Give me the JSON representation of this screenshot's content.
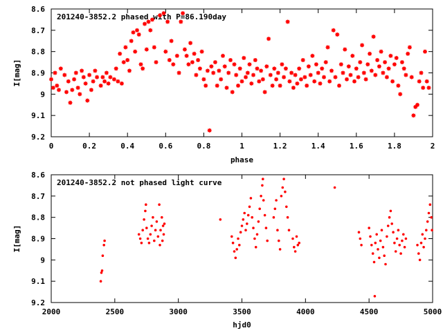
{
  "colors": {
    "points": "#ff0000",
    "axes": "#000000",
    "background": "#ffffff"
  },
  "chart_data": [
    {
      "type": "scatter",
      "title": "201240-3852.2 phased with P=86.190day",
      "xlabel": "phase",
      "ylabel": "I[mag]",
      "xlim": [
        0,
        2
      ],
      "ylim": [
        8.6,
        9.2
      ],
      "y_inverted": true,
      "grid": false,
      "marker": "star",
      "x_ticks": [
        0,
        0.2,
        0.4,
        0.6,
        0.8,
        1,
        1.2,
        1.4,
        1.6,
        1.8,
        2
      ],
      "x_tick_labels": [
        "0",
        "0.2",
        "0.4",
        "0.6",
        "0.8",
        "1",
        "1.2",
        "1.4",
        "1.6",
        "1.8",
        "2"
      ],
      "y_ticks": [
        8.6,
        8.7,
        8.8,
        8.9,
        9,
        9.1,
        9.2
      ],
      "y_tick_labels": [
        "8.6",
        "8.7",
        "8.8",
        "8.9",
        "9",
        "9.1",
        "9.2"
      ],
      "points": [
        [
          0.0,
          8.93
        ],
        [
          0.01,
          8.97
        ],
        [
          0.02,
          8.9
        ],
        [
          0.03,
          8.96
        ],
        [
          0.04,
          8.98
        ],
        [
          0.05,
          8.88
        ],
        [
          0.07,
          8.91
        ],
        [
          0.08,
          8.99
        ],
        [
          0.09,
          8.94
        ],
        [
          0.1,
          9.04
        ],
        [
          0.11,
          8.98
        ],
        [
          0.12,
          8.93
        ],
        [
          0.13,
          8.9
        ],
        [
          0.14,
          8.97
        ],
        [
          0.15,
          9.0
        ],
        [
          0.16,
          8.89
        ],
        [
          0.17,
          8.92
        ],
        [
          0.18,
          8.95
        ],
        [
          0.19,
          9.03
        ],
        [
          0.2,
          8.91
        ],
        [
          0.21,
          8.98
        ],
        [
          0.22,
          8.94
        ],
        [
          0.23,
          8.89
        ],
        [
          0.24,
          8.92
        ],
        [
          0.26,
          8.96
        ],
        [
          0.27,
          8.92
        ],
        [
          0.28,
          8.94
        ],
        [
          0.29,
          8.9
        ],
        [
          0.3,
          8.95
        ],
        [
          0.31,
          8.92
        ],
        [
          0.33,
          8.93
        ],
        [
          0.34,
          8.88
        ],
        [
          0.35,
          8.94
        ],
        [
          0.36,
          8.81
        ],
        [
          0.37,
          8.95
        ],
        [
          0.38,
          8.85
        ],
        [
          0.39,
          8.78
        ],
        [
          0.4,
          8.84
        ],
        [
          0.41,
          8.89
        ],
        [
          0.42,
          8.75
        ],
        [
          0.43,
          8.71
        ],
        [
          0.44,
          8.8
        ],
        [
          0.45,
          8.7
        ],
        [
          0.46,
          8.72
        ],
        [
          0.47,
          8.86
        ],
        [
          0.48,
          8.88
        ],
        [
          0.49,
          8.67
        ],
        [
          0.5,
          8.79
        ],
        [
          0.51,
          8.66
        ],
        [
          0.52,
          8.7
        ],
        [
          0.53,
          8.65
        ],
        [
          0.54,
          8.78
        ],
        [
          0.55,
          8.85
        ],
        [
          0.57,
          8.63
        ],
        [
          0.59,
          8.62
        ],
        [
          0.6,
          8.8
        ],
        [
          0.61,
          8.66
        ],
        [
          0.62,
          8.84
        ],
        [
          0.63,
          8.75
        ],
        [
          0.64,
          8.86
        ],
        [
          0.66,
          8.82
        ],
        [
          0.67,
          8.9
        ],
        [
          0.68,
          8.66
        ],
        [
          0.69,
          8.62
        ],
        [
          0.7,
          8.79
        ],
        [
          0.71,
          8.82
        ],
        [
          0.72,
          8.86
        ],
        [
          0.73,
          8.76
        ],
        [
          0.74,
          8.85
        ],
        [
          0.75,
          8.81
        ],
        [
          0.76,
          8.91
        ],
        [
          0.77,
          8.84
        ],
        [
          0.78,
          8.88
        ],
        [
          0.79,
          8.8
        ],
        [
          0.8,
          8.93
        ],
        [
          0.81,
          8.96
        ],
        [
          0.82,
          8.89
        ],
        [
          0.83,
          9.17
        ],
        [
          0.84,
          8.87
        ],
        [
          0.85,
          8.9
        ],
        [
          0.86,
          8.85
        ],
        [
          0.87,
          8.96
        ],
        [
          0.88,
          8.89
        ],
        [
          0.89,
          8.93
        ],
        [
          0.9,
          8.82
        ],
        [
          0.91,
          8.87
        ],
        [
          0.92,
          8.97
        ],
        [
          0.93,
          8.9
        ],
        [
          0.94,
          8.84
        ],
        [
          0.95,
          8.99
        ],
        [
          0.96,
          8.86
        ],
        [
          0.97,
          8.91
        ],
        [
          0.98,
          8.96
        ],
        [
          0.99,
          8.88
        ],
        [
          1.0,
          8.94
        ],
        [
          1.01,
          8.83
        ],
        [
          1.02,
          8.92
        ],
        [
          1.03,
          8.9
        ],
        [
          1.04,
          8.86
        ],
        [
          1.05,
          8.95
        ],
        [
          1.06,
          8.91
        ],
        [
          1.07,
          8.84
        ],
        [
          1.08,
          8.88
        ],
        [
          1.09,
          8.94
        ],
        [
          1.1,
          8.89
        ],
        [
          1.11,
          8.93
        ],
        [
          1.12,
          8.99
        ],
        [
          1.13,
          8.87
        ],
        [
          1.14,
          8.74
        ],
        [
          1.15,
          8.91
        ],
        [
          1.16,
          8.96
        ],
        [
          1.17,
          8.88
        ],
        [
          1.18,
          8.93
        ],
        [
          1.19,
          8.9
        ],
        [
          1.2,
          8.96
        ],
        [
          1.21,
          8.86
        ],
        [
          1.22,
          8.92
        ],
        [
          1.23,
          8.88
        ],
        [
          1.24,
          8.66
        ],
        [
          1.25,
          8.94
        ],
        [
          1.26,
          8.9
        ],
        [
          1.27,
          8.97
        ],
        [
          1.28,
          8.91
        ],
        [
          1.29,
          8.95
        ],
        [
          1.3,
          8.88
        ],
        [
          1.31,
          8.93
        ],
        [
          1.32,
          8.84
        ],
        [
          1.33,
          8.92
        ],
        [
          1.34,
          8.96
        ],
        [
          1.35,
          8.87
        ],
        [
          1.36,
          8.91
        ],
        [
          1.37,
          8.82
        ],
        [
          1.38,
          8.94
        ],
        [
          1.39,
          8.86
        ],
        [
          1.4,
          8.9
        ],
        [
          1.41,
          8.95
        ],
        [
          1.42,
          8.88
        ],
        [
          1.43,
          8.92
        ],
        [
          1.44,
          8.85
        ],
        [
          1.45,
          8.78
        ],
        [
          1.46,
          8.94
        ],
        [
          1.47,
          8.89
        ],
        [
          1.48,
          8.7
        ],
        [
          1.49,
          8.92
        ],
        [
          1.5,
          8.72
        ],
        [
          1.51,
          8.96
        ],
        [
          1.52,
          8.86
        ],
        [
          1.53,
          8.9
        ],
        [
          1.54,
          8.79
        ],
        [
          1.55,
          8.93
        ],
        [
          1.56,
          8.87
        ],
        [
          1.57,
          8.91
        ],
        [
          1.58,
          8.82
        ],
        [
          1.59,
          8.94
        ],
        [
          1.6,
          8.88
        ],
        [
          1.61,
          8.92
        ],
        [
          1.62,
          8.85
        ],
        [
          1.63,
          8.77
        ],
        [
          1.64,
          8.9
        ],
        [
          1.65,
          8.93
        ],
        [
          1.66,
          8.86
        ],
        [
          1.67,
          8.81
        ],
        [
          1.68,
          8.89
        ],
        [
          1.69,
          8.73
        ],
        [
          1.7,
          8.91
        ],
        [
          1.71,
          8.84
        ],
        [
          1.72,
          8.87
        ],
        [
          1.73,
          8.8
        ],
        [
          1.74,
          8.9
        ],
        [
          1.75,
          8.85
        ],
        [
          1.76,
          8.92
        ],
        [
          1.77,
          8.88
        ],
        [
          1.78,
          8.82
        ],
        [
          1.79,
          8.94
        ],
        [
          1.8,
          8.86
        ],
        [
          1.81,
          8.83
        ],
        [
          1.82,
          8.96
        ],
        [
          1.83,
          9.0
        ],
        [
          1.84,
          8.85
        ],
        [
          1.85,
          8.88
        ],
        [
          1.86,
          8.91
        ],
        [
          1.87,
          8.81
        ],
        [
          1.88,
          8.78
        ],
        [
          1.89,
          8.92
        ],
        [
          1.9,
          9.1
        ],
        [
          1.91,
          9.06
        ],
        [
          1.92,
          9.05
        ],
        [
          1.93,
          8.94
        ],
        [
          1.94,
          8.9
        ],
        [
          1.95,
          8.97
        ],
        [
          1.96,
          8.8
        ],
        [
          1.97,
          8.94
        ],
        [
          1.98,
          8.97
        ]
      ]
    },
    {
      "type": "scatter",
      "title": "201240-3852.2 not phased light curve",
      "xlabel": "hjd0",
      "ylabel": "I[mag]",
      "xlim": [
        2000,
        5000
      ],
      "ylim": [
        8.6,
        9.2
      ],
      "y_inverted": true,
      "grid": false,
      "marker": "dot",
      "x_ticks": [
        2000,
        2500,
        3000,
        3500,
        4000,
        4500,
        5000
      ],
      "x_tick_labels": [
        "2000",
        "2500",
        "3000",
        "3500",
        "4000",
        "4500",
        "5000"
      ],
      "y_ticks": [
        8.6,
        8.7,
        8.8,
        8.9,
        9,
        9.1,
        9.2
      ],
      "y_tick_labels": [
        "8.6",
        "8.7",
        "8.8",
        "8.9",
        "9",
        "9.1",
        "9.2"
      ],
      "points": [
        [
          2390,
          9.1
        ],
        [
          2395,
          9.06
        ],
        [
          2400,
          9.05
        ],
        [
          2405,
          8.98
        ],
        [
          2415,
          8.93
        ],
        [
          2420,
          8.91
        ],
        [
          2690,
          8.88
        ],
        [
          2700,
          8.9
        ],
        [
          2710,
          8.92
        ],
        [
          2720,
          8.86
        ],
        [
          2730,
          8.81
        ],
        [
          2740,
          8.77
        ],
        [
          2745,
          8.74
        ],
        [
          2750,
          8.85
        ],
        [
          2760,
          8.9
        ],
        [
          2770,
          8.92
        ],
        [
          2780,
          8.88
        ],
        [
          2790,
          8.84
        ],
        [
          2800,
          8.8
        ],
        [
          2810,
          8.91
        ],
        [
          2820,
          8.86
        ],
        [
          2830,
          8.82
        ],
        [
          2840,
          8.89
        ],
        [
          2850,
          8.74
        ],
        [
          2855,
          8.93
        ],
        [
          2860,
          8.86
        ],
        [
          2870,
          8.8
        ],
        [
          2875,
          8.91
        ],
        [
          2880,
          8.84
        ],
        [
          2885,
          8.88
        ],
        [
          2890,
          8.83
        ],
        [
          3330,
          8.81
        ],
        [
          3420,
          8.89
        ],
        [
          3430,
          8.92
        ],
        [
          3440,
          8.96
        ],
        [
          3450,
          8.99
        ],
        [
          3460,
          8.95
        ],
        [
          3470,
          8.9
        ],
        [
          3480,
          8.93
        ],
        [
          3490,
          8.87
        ],
        [
          3500,
          8.84
        ],
        [
          3510,
          8.81
        ],
        [
          3520,
          8.78
        ],
        [
          3530,
          8.86
        ],
        [
          3540,
          8.83
        ],
        [
          3550,
          8.79
        ],
        [
          3560,
          8.75
        ],
        [
          3570,
          8.71
        ],
        [
          3580,
          8.8
        ],
        [
          3590,
          8.85
        ],
        [
          3600,
          8.9
        ],
        [
          3610,
          8.94
        ],
        [
          3620,
          8.88
        ],
        [
          3630,
          8.82
        ],
        [
          3640,
          8.76
        ],
        [
          3650,
          8.7
        ],
        [
          3660,
          8.65
        ],
        [
          3665,
          8.62
        ],
        [
          3670,
          8.72
        ],
        [
          3680,
          8.79
        ],
        [
          3690,
          8.85
        ],
        [
          3700,
          8.91
        ],
        [
          3750,
          8.8
        ],
        [
          3760,
          8.76
        ],
        [
          3770,
          8.72
        ],
        [
          3780,
          8.86
        ],
        [
          3790,
          8.91
        ],
        [
          3800,
          8.95
        ],
        [
          3810,
          8.7
        ],
        [
          3820,
          8.66
        ],
        [
          3830,
          8.62
        ],
        [
          3840,
          8.68
        ],
        [
          3850,
          8.75
        ],
        [
          3860,
          8.8
        ],
        [
          3870,
          8.86
        ],
        [
          3900,
          8.9
        ],
        [
          3910,
          8.94
        ],
        [
          3920,
          8.96
        ],
        [
          3930,
          8.89
        ],
        [
          3940,
          8.93
        ],
        [
          3950,
          8.92
        ],
        [
          4230,
          8.66
        ],
        [
          4420,
          8.87
        ],
        [
          4430,
          8.9
        ],
        [
          4440,
          8.93
        ],
        [
          4500,
          8.85
        ],
        [
          4510,
          8.89
        ],
        [
          4520,
          8.93
        ],
        [
          4530,
          8.97
        ],
        [
          4540,
          9.01
        ],
        [
          4545,
          9.17
        ],
        [
          4550,
          8.92
        ],
        [
          4560,
          8.88
        ],
        [
          4570,
          8.95
        ],
        [
          4580,
          8.99
        ],
        [
          4590,
          8.91
        ],
        [
          4600,
          8.86
        ],
        [
          4610,
          8.94
        ],
        [
          4620,
          8.98
        ],
        [
          4630,
          9.02
        ],
        [
          4640,
          8.89
        ],
        [
          4650,
          8.84
        ],
        [
          4660,
          8.8
        ],
        [
          4670,
          8.77
        ],
        [
          4680,
          8.83
        ],
        [
          4690,
          8.87
        ],
        [
          4700,
          8.92
        ],
        [
          4710,
          8.96
        ],
        [
          4720,
          8.9
        ],
        [
          4730,
          8.86
        ],
        [
          4740,
          8.93
        ],
        [
          4750,
          8.97
        ],
        [
          4760,
          8.91
        ],
        [
          4770,
          8.88
        ],
        [
          4780,
          8.94
        ],
        [
          4790,
          8.9
        ],
        [
          4880,
          8.93
        ],
        [
          4890,
          8.97
        ],
        [
          4900,
          9.0
        ],
        [
          4910,
          8.92
        ],
        [
          4920,
          8.88
        ],
        [
          4930,
          8.94
        ],
        [
          4940,
          8.9
        ],
        [
          4950,
          8.86
        ],
        [
          4960,
          8.82
        ],
        [
          4970,
          8.78
        ],
        [
          4980,
          8.74
        ],
        [
          4990,
          8.8
        ],
        [
          4995,
          8.86
        ]
      ]
    }
  ]
}
